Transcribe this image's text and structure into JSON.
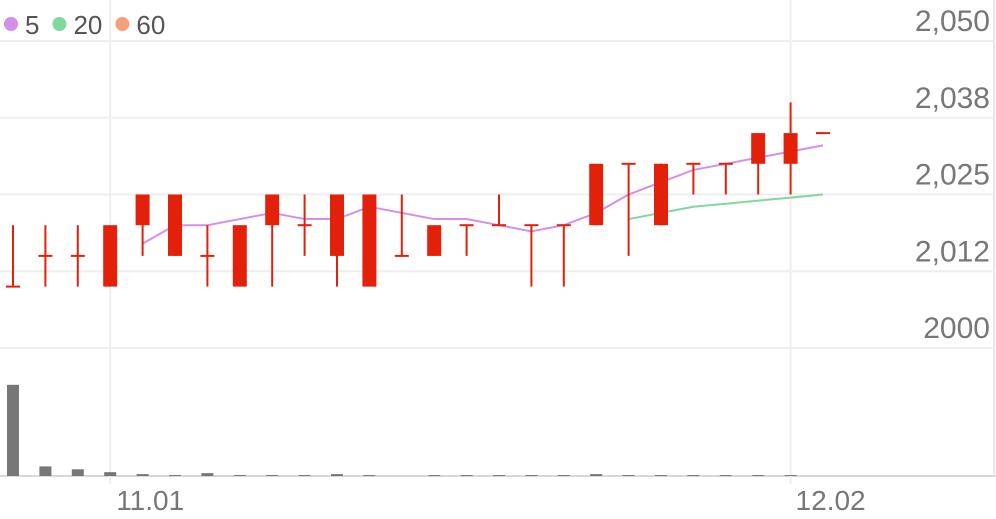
{
  "chart_data": {
    "type": "candlestick",
    "categories": [
      null,
      null,
      null,
      "11.01",
      null,
      null,
      null,
      null,
      null,
      null,
      null,
      null,
      null,
      null,
      null,
      null,
      null,
      null,
      null,
      null,
      null,
      null,
      null,
      null,
      "12.02",
      null
    ],
    "open": [
      2010,
      2015,
      2015,
      2010,
      2020,
      2015,
      2015,
      2010,
      2020,
      2020,
      2015,
      2010,
      2015,
      2015,
      2020,
      2020,
      2020,
      2020,
      2020,
      2030,
      2020,
      2030,
      2030,
      2030,
      2030,
      2035
    ],
    "high": [
      2020,
      2020,
      2020,
      2020,
      2025,
      2025,
      2020,
      2020,
      2025,
      2025,
      2025,
      2025,
      2025,
      2020,
      2020,
      2025,
      2020,
      2020,
      2030,
      2030,
      2030,
      2030,
      2030,
      2035,
      2040,
      2035
    ],
    "low": [
      2010,
      2010,
      2010,
      2010,
      2015,
      2015,
      2010,
      2010,
      2010,
      2015,
      2010,
      2010,
      2015,
      2015,
      2015,
      2020,
      2010,
      2010,
      2020,
      2015,
      2020,
      2025,
      2025,
      2025,
      2025,
      2035
    ],
    "close": [
      2010,
      2015,
      2015,
      2020,
      2025,
      2025,
      2015,
      2020,
      2025,
      2020,
      2025,
      2025,
      2015,
      2020,
      2020,
      2020,
      2020,
      2020,
      2030,
      2030,
      2030,
      2030,
      2030,
      2035,
      2035,
      2035
    ],
    "candle_color": "#e3200a",
    "volume": [
      95,
      10,
      7,
      4,
      2,
      1,
      3,
      1,
      1,
      1,
      2,
      1,
      0,
      1,
      1,
      1,
      1,
      1,
      2,
      1,
      1,
      1,
      1,
      1,
      1,
      0
    ],
    "volume_color": "#777777",
    "vlim": [
      0,
      100
    ],
    "series": [
      {
        "name": "5",
        "color": "#d58fe8",
        "values": [
          null,
          null,
          null,
          null,
          2017,
          2020,
          2020,
          2021,
          2022,
          2021,
          2021,
          2023,
          2022,
          2021,
          2021,
          2020,
          2019,
          2020,
          2022,
          2025,
          2027,
          2029,
          2030,
          2031,
          2032,
          2033
        ]
      },
      {
        "name": "20",
        "color": "#7fd8a0",
        "values": [
          null,
          null,
          null,
          null,
          null,
          null,
          null,
          null,
          null,
          null,
          null,
          null,
          null,
          null,
          null,
          null,
          null,
          null,
          null,
          2021,
          2022,
          2023,
          2023.5,
          2024,
          2024.5,
          2025
        ]
      },
      {
        "name": "60",
        "color": "#f4a07e",
        "values": [
          null,
          null,
          null,
          null,
          null,
          null,
          null,
          null,
          null,
          null,
          null,
          null,
          null,
          null,
          null,
          null,
          null,
          null,
          null,
          null,
          null,
          null,
          null,
          null,
          null,
          null
        ]
      }
    ],
    "ylim": [
      2000,
      2050
    ],
    "yticks": [
      2000,
      {
        "value": 2012.5,
        "label": "2,012"
      },
      {
        "value": 2025,
        "label": "2,025"
      },
      {
        "value": 2037.5,
        "label": "2,038"
      },
      {
        "value": 2050,
        "label": "2,050"
      }
    ],
    "grid": true
  }
}
